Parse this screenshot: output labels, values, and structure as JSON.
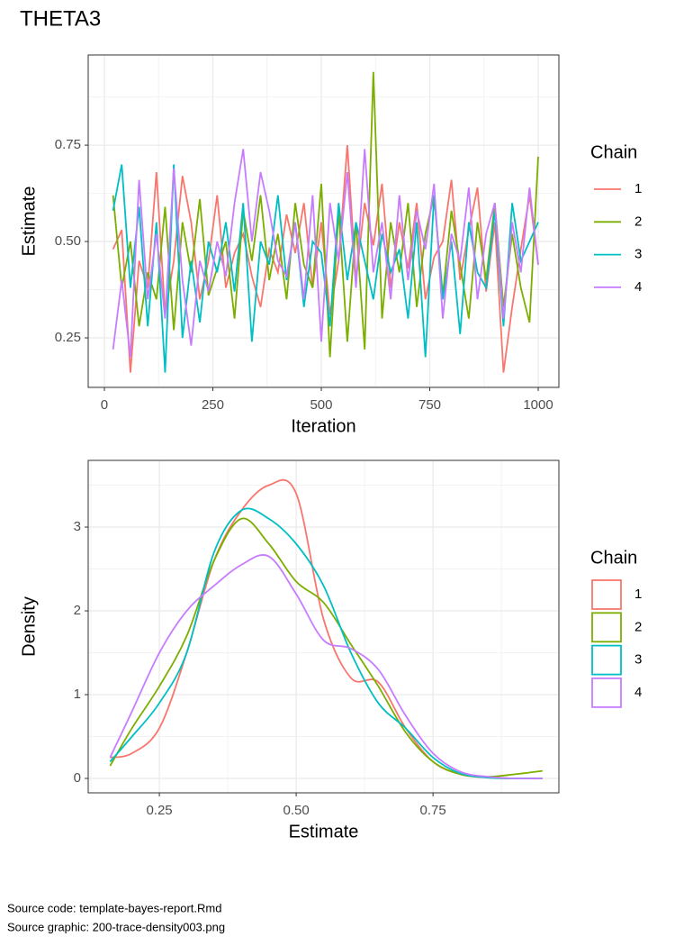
{
  "title": "THETA3",
  "chart_data": [
    {
      "type": "line",
      "x_label": "Iteration",
      "y_label": "Estimate",
      "legend_title": "Chain",
      "legend_key": "line",
      "legend_position": "right",
      "grid": true,
      "smooth": false,
      "xlim": [
        -37.3,
        1047.7
      ],
      "ylim": [
        0.1215,
        0.984
      ],
      "xticks": [
        0,
        250,
        500,
        750,
        1000
      ],
      "yticks": [
        0.25,
        {
          "value": 0.5,
          "label": "0.50"
        },
        0.75
      ],
      "x": [
        20,
        40,
        60,
        80,
        100,
        120,
        140,
        160,
        180,
        200,
        220,
        240,
        260,
        280,
        300,
        320,
        340,
        360,
        380,
        400,
        420,
        440,
        460,
        480,
        500,
        520,
        540,
        560,
        580,
        600,
        620,
        640,
        660,
        680,
        700,
        720,
        740,
        760,
        780,
        800,
        820,
        840,
        860,
        880,
        900,
        920,
        940,
        960,
        980,
        1000
      ],
      "series": [
        {
          "name": "1",
          "color": "#F8766D",
          "values": [
            0.48,
            0.53,
            0.16,
            0.45,
            0.38,
            0.68,
            0.31,
            0.45,
            0.67,
            0.55,
            0.35,
            0.45,
            0.62,
            0.38,
            0.47,
            0.52,
            0.41,
            0.33,
            0.48,
            0.42,
            0.57,
            0.47,
            0.6,
            0.38,
            0.55,
            0.31,
            0.45,
            0.75,
            0.4,
            0.6,
            0.49,
            0.65,
            0.38,
            0.55,
            0.43,
            0.6,
            0.35,
            0.46,
            0.5,
            0.66,
            0.4,
            0.53,
            0.64,
            0.37,
            0.55,
            0.16,
            0.33,
            0.48,
            0.62,
            0.44
          ]
        },
        {
          "name": "2",
          "color": "#7CAE00",
          "values": [
            0.62,
            0.38,
            0.5,
            0.28,
            0.42,
            0.35,
            0.59,
            0.27,
            0.55,
            0.42,
            0.61,
            0.36,
            0.43,
            0.5,
            0.3,
            0.58,
            0.45,
            0.62,
            0.4,
            0.52,
            0.35,
            0.6,
            0.44,
            0.38,
            0.65,
            0.2,
            0.58,
            0.24,
            0.55,
            0.22,
            0.94,
            0.3,
            0.55,
            0.42,
            0.6,
            0.33,
            0.52,
            0.62,
            0.36,
            0.58,
            0.44,
            0.3,
            0.55,
            0.4,
            0.6,
            0.33,
            0.52,
            0.38,
            0.29,
            0.72
          ]
        },
        {
          "name": "3",
          "color": "#00BFC4",
          "values": [
            0.58,
            0.7,
            0.38,
            0.59,
            0.28,
            0.55,
            0.16,
            0.7,
            0.25,
            0.45,
            0.29,
            0.5,
            0.42,
            0.55,
            0.37,
            0.6,
            0.24,
            0.5,
            0.44,
            0.62,
            0.4,
            0.55,
            0.33,
            0.5,
            0.47,
            0.28,
            0.6,
            0.4,
            0.55,
            0.45,
            0.35,
            0.52,
            0.42,
            0.48,
            0.3,
            0.55,
            0.2,
            0.62,
            0.35,
            0.5,
            0.26,
            0.55,
            0.42,
            0.38,
            0.58,
            0.28,
            0.6,
            0.45,
            0.5,
            0.55
          ]
        },
        {
          "name": "4",
          "color": "#C77CFF",
          "values": [
            0.22,
            0.4,
            0.2,
            0.66,
            0.35,
            0.52,
            0.3,
            0.69,
            0.4,
            0.23,
            0.45,
            0.37,
            0.5,
            0.41,
            0.6,
            0.74,
            0.5,
            0.68,
            0.58,
            0.45,
            0.41,
            0.55,
            0.35,
            0.62,
            0.24,
            0.6,
            0.45,
            0.68,
            0.38,
            0.74,
            0.42,
            0.55,
            0.35,
            0.62,
            0.4,
            0.58,
            0.48,
            0.65,
            0.3,
            0.52,
            0.45,
            0.64,
            0.35,
            0.52,
            0.6,
            0.3,
            0.55,
            0.42,
            0.64,
            0.44
          ]
        }
      ]
    },
    {
      "type": "line",
      "x_label": "Estimate",
      "y_label": "Density",
      "legend_title": "Chain",
      "legend_key": "box",
      "legend_position": "right",
      "grid": true,
      "smooth": true,
      "xlim": [
        0.12,
        0.98
      ],
      "ylim": [
        -0.172,
        3.796
      ],
      "xticks": [
        0.25,
        {
          "value": 0.5,
          "label": "0.50"
        },
        0.75
      ],
      "yticks": [
        0,
        1,
        2,
        3
      ],
      "x": [
        0.16,
        0.2,
        0.25,
        0.3,
        0.35,
        0.4,
        0.45,
        0.5,
        0.55,
        0.6,
        0.65,
        0.7,
        0.75,
        0.8,
        0.85,
        0.9,
        0.95
      ],
      "series": [
        {
          "name": "1",
          "color": "#F8766D",
          "values": [
            0.25,
            0.3,
            0.6,
            1.5,
            2.6,
            3.2,
            3.5,
            3.4,
            1.9,
            1.2,
            1.15,
            0.6,
            0.2,
            0.05,
            0.01,
            0,
            0
          ]
        },
        {
          "name": "2",
          "color": "#7CAE00",
          "values": [
            0.15,
            0.6,
            1.1,
            1.7,
            2.6,
            3.1,
            2.8,
            2.35,
            2.1,
            1.6,
            1.1,
            0.55,
            0.2,
            0.05,
            0.02,
            0.05,
            0.09
          ]
        },
        {
          "name": "3",
          "color": "#00BFC4",
          "values": [
            0.2,
            0.5,
            0.9,
            1.5,
            2.7,
            3.2,
            3.1,
            2.8,
            2.3,
            1.5,
            0.9,
            0.6,
            0.25,
            0.06,
            0.01,
            0,
            0
          ]
        },
        {
          "name": "4",
          "color": "#C77CFF",
          "values": [
            0.25,
            0.8,
            1.5,
            2.0,
            2.3,
            2.55,
            2.65,
            2.2,
            1.65,
            1.55,
            1.3,
            0.75,
            0.3,
            0.08,
            0.02,
            0,
            0
          ]
        }
      ]
    }
  ],
  "footer": [
    "Source code: template-bayes-report.Rmd",
    "Source graphic: 200-trace-density003.png"
  ]
}
